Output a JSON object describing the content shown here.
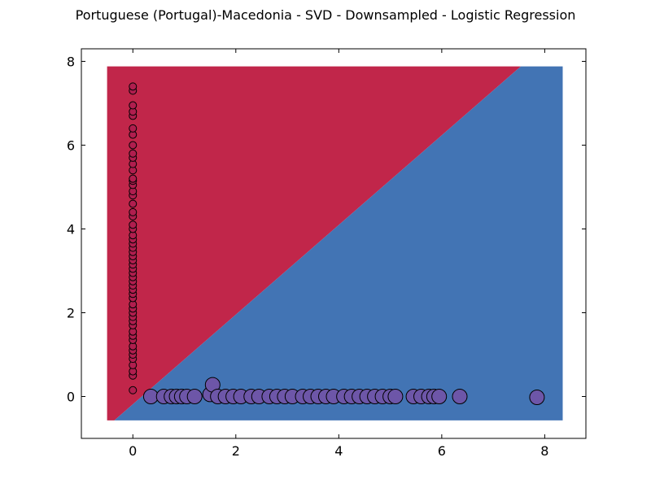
{
  "chart_data": {
    "type": "scatter",
    "title": "Portuguese (Portugal)-Macedonia - SVD - Downsampled - Logistic Regression",
    "xlabel": "",
    "ylabel": "",
    "xlim": [
      -1,
      8.8
    ],
    "ylim": [
      -1,
      8.3
    ],
    "x_ticks": [
      0,
      2,
      4,
      6,
      8
    ],
    "y_ticks": [
      0,
      2,
      4,
      6,
      8
    ],
    "grid": false,
    "decision_regions": {
      "extent_x": [
        -0.5,
        8.35
      ],
      "extent_y": [
        -0.57,
        7.88
      ],
      "boundary": {
        "x0": -0.36,
        "y0": -0.57,
        "slope": 1.07
      },
      "upper_class_color": "#c1264a",
      "lower_class_color": "#4274b4"
    },
    "series": [
      {
        "color": "#b01e4e",
        "marker_size": "small",
        "points": [
          [
            0.0,
            0.15
          ],
          [
            0.0,
            0.5
          ],
          [
            0.0,
            0.6
          ],
          [
            0.0,
            0.75
          ],
          [
            0.0,
            0.9
          ],
          [
            0.0,
            1.0
          ],
          [
            0.0,
            1.1
          ],
          [
            0.0,
            1.2
          ],
          [
            0.0,
            1.35
          ],
          [
            0.0,
            1.45
          ],
          [
            0.0,
            1.55
          ],
          [
            0.0,
            1.7
          ],
          [
            0.0,
            1.8
          ],
          [
            0.0,
            1.9
          ],
          [
            0.0,
            2.0
          ],
          [
            0.0,
            2.1
          ],
          [
            0.0,
            2.2
          ],
          [
            0.0,
            2.35
          ],
          [
            0.0,
            2.45
          ],
          [
            0.0,
            2.55
          ],
          [
            0.0,
            2.65
          ],
          [
            0.0,
            2.75
          ],
          [
            0.0,
            2.85
          ],
          [
            0.0,
            2.95
          ],
          [
            0.0,
            3.05
          ],
          [
            0.0,
            3.15
          ],
          [
            0.0,
            3.25
          ],
          [
            0.0,
            3.35
          ],
          [
            0.0,
            3.45
          ],
          [
            0.0,
            3.55
          ],
          [
            0.0,
            3.65
          ],
          [
            0.0,
            3.75
          ],
          [
            0.0,
            3.85
          ],
          [
            0.0,
            4.0
          ],
          [
            0.0,
            4.1
          ],
          [
            0.0,
            4.3
          ],
          [
            0.0,
            4.4
          ],
          [
            0.0,
            4.6
          ],
          [
            0.0,
            4.8
          ],
          [
            0.0,
            4.9
          ],
          [
            0.0,
            5.05
          ],
          [
            0.0,
            5.15
          ],
          [
            0.0,
            5.2
          ],
          [
            0.0,
            5.4
          ],
          [
            0.0,
            5.55
          ],
          [
            0.0,
            5.7
          ],
          [
            0.0,
            5.8
          ],
          [
            0.0,
            6.0
          ],
          [
            0.0,
            6.25
          ],
          [
            0.0,
            6.4
          ],
          [
            0.0,
            6.7
          ],
          [
            0.0,
            6.8
          ],
          [
            0.0,
            6.95
          ],
          [
            0.0,
            7.3
          ],
          [
            0.0,
            7.4
          ]
        ]
      },
      {
        "color": "#6d56a8",
        "marker_size": "large",
        "points": [
          [
            0.35,
            0.0
          ],
          [
            0.6,
            0.0
          ],
          [
            0.75,
            0.0
          ],
          [
            0.85,
            0.0
          ],
          [
            0.95,
            0.0
          ],
          [
            1.05,
            0.0
          ],
          [
            1.2,
            0.0
          ],
          [
            1.5,
            0.05
          ],
          [
            1.55,
            0.28
          ],
          [
            1.65,
            0.0
          ],
          [
            1.8,
            0.0
          ],
          [
            1.95,
            0.0
          ],
          [
            2.1,
            0.0
          ],
          [
            2.3,
            0.0
          ],
          [
            2.45,
            0.0
          ],
          [
            2.65,
            0.0
          ],
          [
            2.8,
            0.0
          ],
          [
            2.95,
            0.0
          ],
          [
            3.1,
            0.0
          ],
          [
            3.3,
            0.0
          ],
          [
            3.45,
            0.0
          ],
          [
            3.6,
            0.0
          ],
          [
            3.75,
            0.0
          ],
          [
            3.9,
            0.0
          ],
          [
            4.1,
            0.0
          ],
          [
            4.25,
            0.0
          ],
          [
            4.4,
            0.0
          ],
          [
            4.55,
            0.0
          ],
          [
            4.7,
            0.0
          ],
          [
            4.85,
            0.0
          ],
          [
            5.0,
            0.0
          ],
          [
            5.1,
            0.0
          ],
          [
            5.45,
            0.0
          ],
          [
            5.6,
            0.0
          ],
          [
            5.75,
            0.0
          ],
          [
            5.85,
            0.0
          ],
          [
            5.95,
            0.0
          ],
          [
            6.35,
            0.0
          ],
          [
            7.85,
            -0.02
          ]
        ]
      }
    ]
  }
}
